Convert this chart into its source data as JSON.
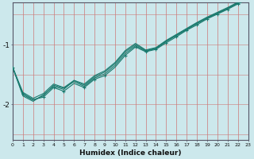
{
  "title": "",
  "xlabel": "Humidex (Indice chaleur)",
  "ylabel": "",
  "bg_color": "#cce8ec",
  "line_color": "#1a7a6e",
  "grid_color_v": "#d47070",
  "grid_color_h": "#c8c8d8",
  "x_min": 0,
  "x_max": 23,
  "y_min": -2.6,
  "y_max": -0.3,
  "yticks": [
    -2,
    -1
  ],
  "xticks": [
    0,
    1,
    2,
    3,
    4,
    5,
    6,
    7,
    8,
    9,
    10,
    11,
    12,
    13,
    14,
    15,
    16,
    17,
    18,
    19,
    20,
    21,
    22,
    23
  ],
  "series1": [
    [
      0,
      -1.38
    ],
    [
      1,
      -1.82
    ],
    [
      2,
      -1.92
    ],
    [
      3,
      -1.88
    ],
    [
      4,
      -1.72
    ],
    [
      5,
      -1.78
    ],
    [
      6,
      -1.65
    ],
    [
      7,
      -1.72
    ],
    [
      8,
      -1.58
    ],
    [
      9,
      -1.52
    ],
    [
      10,
      -1.38
    ],
    [
      11,
      -1.18
    ],
    [
      12,
      -1.04
    ],
    [
      13,
      -1.12
    ],
    [
      14,
      -1.08
    ],
    [
      15,
      -0.97
    ],
    [
      16,
      -0.87
    ],
    [
      17,
      -0.76
    ],
    [
      18,
      -0.67
    ],
    [
      19,
      -0.57
    ],
    [
      20,
      -0.49
    ],
    [
      21,
      -0.41
    ],
    [
      22,
      -0.32
    ],
    [
      23,
      -0.24
    ]
  ],
  "series2": [
    [
      0,
      -1.38
    ],
    [
      1,
      -1.86
    ],
    [
      2,
      -1.95
    ],
    [
      3,
      -1.84
    ],
    [
      4,
      -1.7
    ],
    [
      5,
      -1.75
    ],
    [
      6,
      -1.6
    ],
    [
      7,
      -1.68
    ],
    [
      8,
      -1.54
    ],
    [
      9,
      -1.46
    ],
    [
      10,
      -1.32
    ],
    [
      11,
      -1.12
    ],
    [
      12,
      -1.0
    ],
    [
      13,
      -1.1
    ],
    [
      14,
      -1.06
    ],
    [
      15,
      -0.94
    ],
    [
      16,
      -0.84
    ],
    [
      17,
      -0.74
    ],
    [
      18,
      -0.64
    ],
    [
      19,
      -0.55
    ],
    [
      20,
      -0.47
    ],
    [
      21,
      -0.39
    ],
    [
      22,
      -0.3
    ],
    [
      23,
      -0.21
    ]
  ],
  "series3": [
    [
      0,
      -1.38
    ],
    [
      1,
      -1.84
    ],
    [
      2,
      -1.93
    ],
    [
      3,
      -1.86
    ],
    [
      4,
      -1.68
    ],
    [
      5,
      -1.73
    ],
    [
      6,
      -1.62
    ],
    [
      7,
      -1.7
    ],
    [
      8,
      -1.56
    ],
    [
      9,
      -1.49
    ],
    [
      10,
      -1.35
    ],
    [
      11,
      -1.15
    ],
    [
      12,
      -1.02
    ],
    [
      13,
      -1.11
    ],
    [
      14,
      -1.07
    ],
    [
      15,
      -0.95
    ],
    [
      16,
      -0.85
    ],
    [
      17,
      -0.75
    ],
    [
      18,
      -0.65
    ],
    [
      19,
      -0.56
    ],
    [
      20,
      -0.48
    ],
    [
      21,
      -0.4
    ],
    [
      22,
      -0.31
    ],
    [
      23,
      -0.22
    ]
  ],
  "series4": [
    [
      0,
      -1.38
    ],
    [
      1,
      -1.8
    ],
    [
      2,
      -1.9
    ],
    [
      3,
      -1.82
    ],
    [
      4,
      -1.66
    ],
    [
      5,
      -1.72
    ],
    [
      6,
      -1.6
    ],
    [
      7,
      -1.66
    ],
    [
      8,
      -1.52
    ],
    [
      9,
      -1.44
    ],
    [
      10,
      -1.3
    ],
    [
      11,
      -1.1
    ],
    [
      12,
      -0.98
    ],
    [
      13,
      -1.09
    ],
    [
      14,
      -1.05
    ],
    [
      15,
      -0.93
    ],
    [
      16,
      -0.83
    ],
    [
      17,
      -0.73
    ],
    [
      18,
      -0.63
    ],
    [
      19,
      -0.54
    ],
    [
      20,
      -0.46
    ],
    [
      21,
      -0.38
    ],
    [
      22,
      -0.29
    ],
    [
      23,
      -0.2
    ]
  ],
  "markers": [
    [
      0,
      -1.38
    ],
    [
      1,
      -1.82
    ],
    [
      3,
      -1.88
    ],
    [
      4,
      -1.72
    ],
    [
      5,
      -1.78
    ],
    [
      7,
      -1.72
    ],
    [
      8,
      -1.58
    ],
    [
      9,
      -1.52
    ],
    [
      11,
      -1.18
    ],
    [
      12,
      -1.04
    ],
    [
      13,
      -1.12
    ],
    [
      14,
      -1.08
    ],
    [
      15,
      -0.97
    ],
    [
      16,
      -0.87
    ],
    [
      17,
      -0.76
    ],
    [
      18,
      -0.67
    ],
    [
      19,
      -0.57
    ],
    [
      20,
      -0.49
    ],
    [
      21,
      -0.41
    ],
    [
      22,
      -0.32
    ],
    [
      23,
      -0.24
    ]
  ]
}
